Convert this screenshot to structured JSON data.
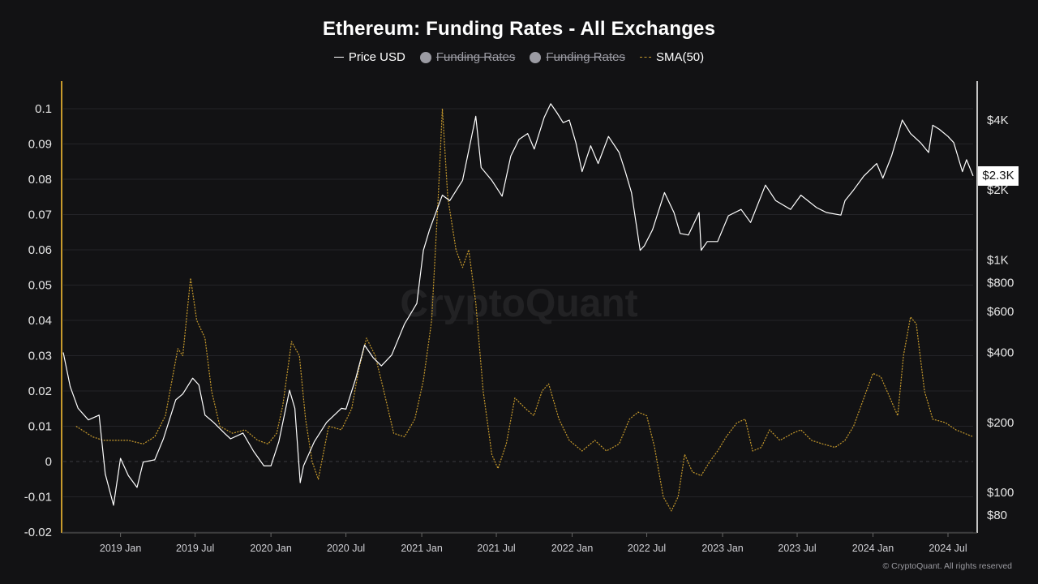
{
  "chart_data": {
    "type": "line",
    "title": "Ethereum: Funding Rates - All Exchanges",
    "legend": [
      {
        "label": "Price USD",
        "style": "solid",
        "color": "#ffffff",
        "enabled": true
      },
      {
        "label": "Funding Rates",
        "style": "dot",
        "color": "#9b9ba3",
        "enabled": false
      },
      {
        "label": "Funding Rates",
        "style": "dot",
        "color": "#9b9ba3",
        "enabled": false
      },
      {
        "label": "SMA(50)",
        "style": "dashed",
        "color": "#c79a2c",
        "enabled": true
      }
    ],
    "legend_position": "top-center",
    "grid": true,
    "x_axis": {
      "start": "2018-08-15",
      "end": "2024-08-31",
      "ticks": [
        {
          "label": "2019 Jan",
          "date": "2019-01-01"
        },
        {
          "label": "2019 Jul",
          "date": "2019-07-01"
        },
        {
          "label": "2020 Jan",
          "date": "2020-01-01"
        },
        {
          "label": "2020 Jul",
          "date": "2020-07-01"
        },
        {
          "label": "2021 Jan",
          "date": "2021-01-01"
        },
        {
          "label": "2021 Jul",
          "date": "2021-07-01"
        },
        {
          "label": "2022 Jan",
          "date": "2022-01-01"
        },
        {
          "label": "2022 Jul",
          "date": "2022-07-01"
        },
        {
          "label": "2023 Jan",
          "date": "2023-01-01"
        },
        {
          "label": "2023 Jul",
          "date": "2023-07-01"
        },
        {
          "label": "2024 Jan",
          "date": "2024-01-01"
        },
        {
          "label": "2024 Jul",
          "date": "2024-07-01"
        }
      ]
    },
    "y_left": {
      "range": [
        -0.02,
        0.1
      ],
      "ticks": [
        "0.1",
        "0.09",
        "0.08",
        "0.07",
        "0.06",
        "0.05",
        "0.04",
        "0.03",
        "0.02",
        "0.01",
        "0",
        "-0.01",
        "-0.02"
      ],
      "tick_values": [
        0.1,
        0.09,
        0.08,
        0.07,
        0.06,
        0.05,
        0.04,
        0.03,
        0.02,
        0.01,
        0,
        -0.01,
        -0.02
      ],
      "axis_color": "#c79a2c"
    },
    "y_right": {
      "scale": "log",
      "range": [
        70,
        5000
      ],
      "ticks": [
        {
          "label": "$4K",
          "value": 4000
        },
        {
          "label": "$2K",
          "value": 2000
        },
        {
          "label": "$1K",
          "value": 1000
        },
        {
          "label": "$800",
          "value": 800
        },
        {
          "label": "$600",
          "value": 600
        },
        {
          "label": "$400",
          "value": 400
        },
        {
          "label": "$200",
          "value": 200
        },
        {
          "label": "$100",
          "value": 100
        },
        {
          "label": "$80",
          "value": 80
        }
      ],
      "current_value_label": "$2.3K",
      "current_value": 2300
    },
    "series": [
      {
        "name": "Price USD",
        "axis": "right",
        "color": "#ffffff",
        "points": [
          [
            "2018-08-15",
            400
          ],
          [
            "2018-09-01",
            285
          ],
          [
            "2018-09-20",
            230
          ],
          [
            "2018-10-15",
            205
          ],
          [
            "2018-11-10",
            215
          ],
          [
            "2018-11-25",
            120
          ],
          [
            "2018-12-15",
            88
          ],
          [
            "2019-01-01",
            140
          ],
          [
            "2019-01-20",
            118
          ],
          [
            "2019-02-10",
            105
          ],
          [
            "2019-02-25",
            135
          ],
          [
            "2019-03-25",
            138
          ],
          [
            "2019-04-15",
            170
          ],
          [
            "2019-05-15",
            250
          ],
          [
            "2019-06-01",
            265
          ],
          [
            "2019-06-25",
            310
          ],
          [
            "2019-07-10",
            290
          ],
          [
            "2019-07-25",
            215
          ],
          [
            "2019-08-15",
            200
          ],
          [
            "2019-09-10",
            180
          ],
          [
            "2019-09-25",
            170
          ],
          [
            "2019-10-25",
            180
          ],
          [
            "2019-11-20",
            150
          ],
          [
            "2019-12-15",
            130
          ],
          [
            "2020-01-01",
            130
          ],
          [
            "2020-01-20",
            165
          ],
          [
            "2020-02-15",
            275
          ],
          [
            "2020-02-28",
            230
          ],
          [
            "2020-03-12",
            110
          ],
          [
            "2020-03-20",
            130
          ],
          [
            "2020-04-15",
            165
          ],
          [
            "2020-05-15",
            200
          ],
          [
            "2020-06-20",
            230
          ],
          [
            "2020-07-01",
            228
          ],
          [
            "2020-07-25",
            310
          ],
          [
            "2020-08-15",
            430
          ],
          [
            "2020-09-05",
            380
          ],
          [
            "2020-09-25",
            350
          ],
          [
            "2020-10-20",
            390
          ],
          [
            "2020-11-20",
            530
          ],
          [
            "2020-12-20",
            650
          ],
          [
            "2021-01-05",
            1100
          ],
          [
            "2021-01-20",
            1350
          ],
          [
            "2021-02-20",
            1900
          ],
          [
            "2021-03-10",
            1800
          ],
          [
            "2021-04-10",
            2200
          ],
          [
            "2021-05-12",
            4150
          ],
          [
            "2021-05-25",
            2500
          ],
          [
            "2021-06-20",
            2200
          ],
          [
            "2021-07-15",
            1880
          ],
          [
            "2021-08-05",
            2800
          ],
          [
            "2021-08-25",
            3300
          ],
          [
            "2021-09-15",
            3500
          ],
          [
            "2021-10-01",
            3000
          ],
          [
            "2021-10-25",
            4100
          ],
          [
            "2021-11-10",
            4700
          ],
          [
            "2021-11-25",
            4300
          ],
          [
            "2021-12-10",
            3900
          ],
          [
            "2021-12-25",
            4000
          ],
          [
            "2022-01-10",
            3200
          ],
          [
            "2022-01-25",
            2400
          ],
          [
            "2022-02-15",
            3100
          ],
          [
            "2022-03-05",
            2600
          ],
          [
            "2022-03-30",
            3400
          ],
          [
            "2022-04-25",
            2900
          ],
          [
            "2022-05-10",
            2400
          ],
          [
            "2022-05-25",
            1950
          ],
          [
            "2022-06-15",
            1100
          ],
          [
            "2022-06-25",
            1150
          ],
          [
            "2022-07-15",
            1350
          ],
          [
            "2022-08-13",
            1950
          ],
          [
            "2022-09-05",
            1600
          ],
          [
            "2022-09-20",
            1300
          ],
          [
            "2022-10-10",
            1280
          ],
          [
            "2022-11-05",
            1600
          ],
          [
            "2022-11-10",
            1100
          ],
          [
            "2022-11-25",
            1200
          ],
          [
            "2022-12-20",
            1200
          ],
          [
            "2023-01-15",
            1550
          ],
          [
            "2023-02-15",
            1650
          ],
          [
            "2023-03-10",
            1450
          ],
          [
            "2023-04-15",
            2100
          ],
          [
            "2023-05-10",
            1800
          ],
          [
            "2023-06-15",
            1650
          ],
          [
            "2023-07-10",
            1900
          ],
          [
            "2023-08-17",
            1680
          ],
          [
            "2023-09-10",
            1600
          ],
          [
            "2023-10-15",
            1560
          ],
          [
            "2023-10-25",
            1800
          ],
          [
            "2023-11-15",
            2000
          ],
          [
            "2023-12-10",
            2300
          ],
          [
            "2024-01-10",
            2600
          ],
          [
            "2024-01-25",
            2250
          ],
          [
            "2024-02-15",
            2800
          ],
          [
            "2024-03-12",
            4000
          ],
          [
            "2024-04-01",
            3500
          ],
          [
            "2024-04-25",
            3200
          ],
          [
            "2024-05-15",
            2900
          ],
          [
            "2024-05-25",
            3800
          ],
          [
            "2024-06-10",
            3650
          ],
          [
            "2024-07-01",
            3400
          ],
          [
            "2024-07-15",
            3200
          ],
          [
            "2024-08-05",
            2400
          ],
          [
            "2024-08-15",
            2700
          ],
          [
            "2024-08-31",
            2300
          ]
        ]
      },
      {
        "name": "SMA(50)",
        "axis": "left",
        "color": "#c79a2c",
        "points": [
          [
            "2018-09-15",
            0.01
          ],
          [
            "2018-10-25",
            0.007
          ],
          [
            "2018-11-20",
            0.006
          ],
          [
            "2018-12-20",
            0.006
          ],
          [
            "2019-01-20",
            0.006
          ],
          [
            "2019-02-25",
            0.005
          ],
          [
            "2019-03-25",
            0.007
          ],
          [
            "2019-04-20",
            0.013
          ],
          [
            "2019-05-20",
            0.032
          ],
          [
            "2019-06-01",
            0.03
          ],
          [
            "2019-06-20",
            0.052
          ],
          [
            "2019-07-05",
            0.04
          ],
          [
            "2019-07-25",
            0.035
          ],
          [
            "2019-08-10",
            0.02
          ],
          [
            "2019-08-30",
            0.01
          ],
          [
            "2019-09-30",
            0.008
          ],
          [
            "2019-10-30",
            0.009
          ],
          [
            "2019-11-30",
            0.006
          ],
          [
            "2019-12-25",
            0.005
          ],
          [
            "2020-01-15",
            0.008
          ],
          [
            "2020-01-30",
            0.016
          ],
          [
            "2020-02-20",
            0.034
          ],
          [
            "2020-03-10",
            0.03
          ],
          [
            "2020-03-25",
            0.012
          ],
          [
            "2020-04-10",
            0.0
          ],
          [
            "2020-04-25",
            -0.005
          ],
          [
            "2020-05-20",
            0.01
          ],
          [
            "2020-06-20",
            0.009
          ],
          [
            "2020-07-15",
            0.015
          ],
          [
            "2020-08-01",
            0.026
          ],
          [
            "2020-08-20",
            0.035
          ],
          [
            "2020-09-10",
            0.03
          ],
          [
            "2020-10-01",
            0.02
          ],
          [
            "2020-10-25",
            0.008
          ],
          [
            "2020-11-20",
            0.007
          ],
          [
            "2020-12-15",
            0.012
          ],
          [
            "2021-01-05",
            0.023
          ],
          [
            "2021-01-25",
            0.04
          ],
          [
            "2021-02-10",
            0.075
          ],
          [
            "2021-02-20",
            0.1
          ],
          [
            "2021-03-05",
            0.075
          ],
          [
            "2021-03-25",
            0.06
          ],
          [
            "2021-04-10",
            0.055
          ],
          [
            "2021-04-25",
            0.06
          ],
          [
            "2021-05-12",
            0.045
          ],
          [
            "2021-05-30",
            0.02
          ],
          [
            "2021-06-20",
            0.002
          ],
          [
            "2021-07-05",
            -0.002
          ],
          [
            "2021-07-25",
            0.005
          ],
          [
            "2021-08-15",
            0.018
          ],
          [
            "2021-09-10",
            0.015
          ],
          [
            "2021-09-30",
            0.013
          ],
          [
            "2021-10-20",
            0.02
          ],
          [
            "2021-11-05",
            0.022
          ],
          [
            "2021-11-30",
            0.012
          ],
          [
            "2021-12-25",
            0.006
          ],
          [
            "2022-01-25",
            0.003
          ],
          [
            "2022-02-25",
            0.006
          ],
          [
            "2022-03-25",
            0.003
          ],
          [
            "2022-04-25",
            0.005
          ],
          [
            "2022-05-20",
            0.012
          ],
          [
            "2022-06-10",
            0.014
          ],
          [
            "2022-07-01",
            0.013
          ],
          [
            "2022-07-20",
            0.004
          ],
          [
            "2022-08-10",
            -0.01
          ],
          [
            "2022-08-30",
            -0.014
          ],
          [
            "2022-09-15",
            -0.01
          ],
          [
            "2022-10-01",
            0.002
          ],
          [
            "2022-10-20",
            -0.003
          ],
          [
            "2022-11-10",
            -0.004
          ],
          [
            "2022-12-01",
            0.0
          ],
          [
            "2022-12-20",
            0.003
          ],
          [
            "2023-01-10",
            0.007
          ],
          [
            "2023-02-05",
            0.011
          ],
          [
            "2023-02-25",
            0.012
          ],
          [
            "2023-03-15",
            0.003
          ],
          [
            "2023-04-05",
            0.004
          ],
          [
            "2023-04-25",
            0.009
          ],
          [
            "2023-05-20",
            0.006
          ],
          [
            "2023-06-20",
            0.008
          ],
          [
            "2023-07-10",
            0.009
          ],
          [
            "2023-08-05",
            0.006
          ],
          [
            "2023-09-01",
            0.005
          ],
          [
            "2023-10-01",
            0.004
          ],
          [
            "2023-10-25",
            0.006
          ],
          [
            "2023-11-15",
            0.01
          ],
          [
            "2023-12-10",
            0.018
          ],
          [
            "2024-01-01",
            0.025
          ],
          [
            "2024-01-20",
            0.024
          ],
          [
            "2024-02-15",
            0.017
          ],
          [
            "2024-03-01",
            0.013
          ],
          [
            "2024-03-15",
            0.03
          ],
          [
            "2024-04-01",
            0.041
          ],
          [
            "2024-04-15",
            0.039
          ],
          [
            "2024-05-05",
            0.02
          ],
          [
            "2024-05-25",
            0.012
          ],
          [
            "2024-06-25",
            0.011
          ],
          [
            "2024-07-20",
            0.009
          ],
          [
            "2024-08-31",
            0.007
          ]
        ]
      }
    ],
    "watermark": "CryptoQuant",
    "copyright": "© CryptoQuant. All rights reserved"
  }
}
